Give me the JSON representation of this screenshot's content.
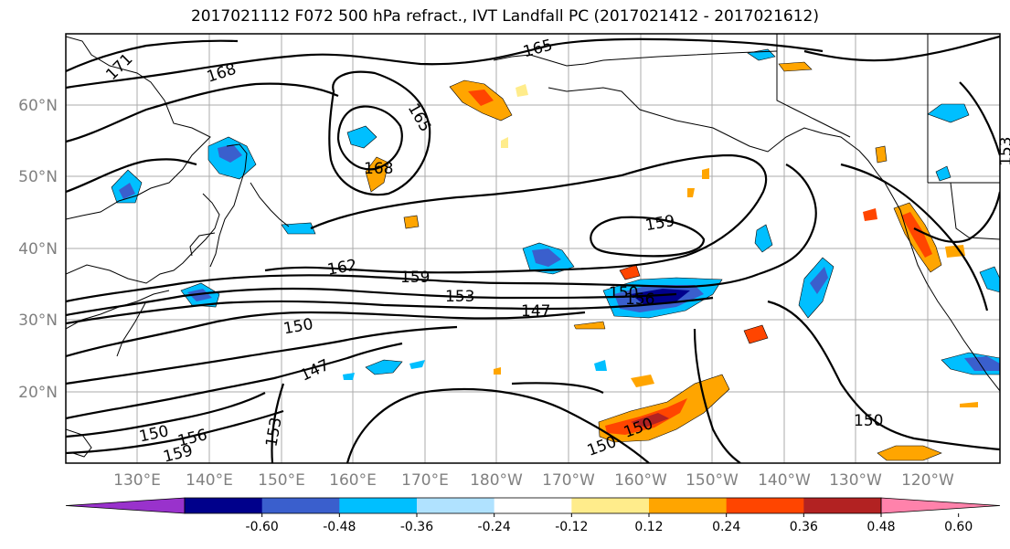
{
  "title": "2017021112 F072 500 hPa refract., IVT Landfall PC (2017021412 - 2017021612)",
  "colors": {
    "contour": "#000000",
    "coast": "#000000",
    "grid": "#888888",
    "axis_label": "#808080"
  },
  "map": {
    "latitude_labels": [
      "60°N",
      "50°N",
      "40°N",
      "30°N",
      "20°N"
    ],
    "longitude_labels": [
      "130°E",
      "140°E",
      "150°E",
      "160°E",
      "170°E",
      "180°W",
      "170°W",
      "160°W",
      "150°W",
      "140°W",
      "130°W",
      "120°W"
    ],
    "contour_labels": [
      "171",
      "168",
      "165",
      "165",
      "168",
      "159",
      "162",
      "159",
      "153",
      "150",
      "147",
      "156",
      "150",
      "147",
      "150",
      "156",
      "153",
      "159",
      "150",
      "150",
      "150",
      "153"
    ]
  },
  "colorbar": {
    "ticks": [
      "-0.60",
      "-0.48",
      "-0.36",
      "-0.24",
      "-0.12",
      "0.12",
      "0.24",
      "0.36",
      "0.48",
      "0.60"
    ],
    "colors": [
      "#9932cc",
      "#00008b",
      "#3a5fcd",
      "#00bfff",
      "#b0e2ff",
      "#ffffff",
      "#ffec8b",
      "#ffa500",
      "#ff4500",
      "#b22222",
      "#ff82ab"
    ]
  }
}
